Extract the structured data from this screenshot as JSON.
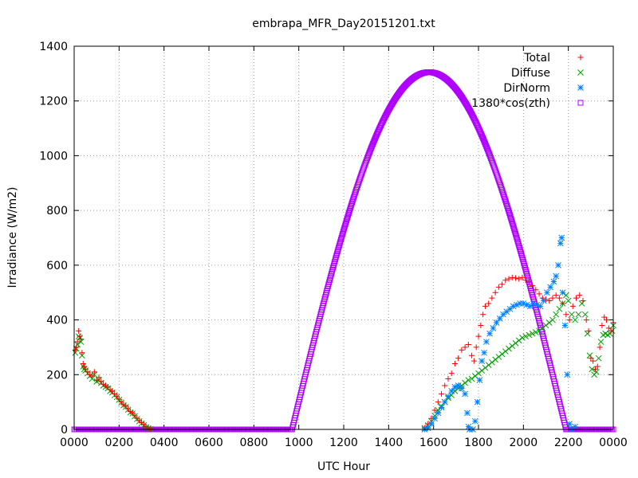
{
  "chart_data": {
    "type": "scatter",
    "title": "embrapa_MFR_Day20151201.txt",
    "xlabel": "UTC Hour",
    "ylabel": "Irradiance (W/m2)",
    "xlim": [
      0,
      24
    ],
    "ylim": [
      0,
      1400
    ],
    "x_tick_labels": [
      "0000",
      "0200",
      "0400",
      "0600",
      "0800",
      "1000",
      "1200",
      "1400",
      "1600",
      "1800",
      "2000",
      "2200",
      "0000"
    ],
    "y_tick_labels": [
      "0",
      "200",
      "400",
      "600",
      "800",
      "1000",
      "1200",
      "1400"
    ],
    "grid": true,
    "legend_position": "top-right",
    "colors": {
      "total": "#ff0000",
      "diffuse": "#00a000",
      "dirnorm": "#0080ff",
      "model": "#b000ff"
    },
    "series": [
      {
        "name": "Total",
        "marker": "plus",
        "color": "#ff0000",
        "points": [
          [
            0.05,
            290
          ],
          [
            0.1,
            300
          ],
          [
            0.15,
            320
          ],
          [
            0.2,
            360
          ],
          [
            0.25,
            340
          ],
          [
            0.3,
            330
          ],
          [
            0.35,
            280
          ],
          [
            0.4,
            240
          ],
          [
            0.45,
            230
          ],
          [
            0.5,
            220
          ],
          [
            0.6,
            210
          ],
          [
            0.7,
            200
          ],
          [
            0.8,
            195
          ],
          [
            0.9,
            210
          ],
          [
            1.0,
            180
          ],
          [
            1.1,
            190
          ],
          [
            1.2,
            175
          ],
          [
            1.3,
            165
          ],
          [
            1.4,
            160
          ],
          [
            1.5,
            155
          ],
          [
            1.6,
            145
          ],
          [
            1.7,
            140
          ],
          [
            1.8,
            130
          ],
          [
            1.9,
            120
          ],
          [
            2.0,
            110
          ],
          [
            2.1,
            100
          ],
          [
            2.2,
            90
          ],
          [
            2.3,
            85
          ],
          [
            2.4,
            75
          ],
          [
            2.5,
            65
          ],
          [
            2.6,
            60
          ],
          [
            2.7,
            50
          ],
          [
            2.8,
            40
          ],
          [
            2.9,
            32
          ],
          [
            3.0,
            25
          ],
          [
            3.1,
            18
          ],
          [
            3.2,
            10
          ],
          [
            3.3,
            5
          ],
          [
            3.4,
            2
          ],
          [
            15.6,
            5
          ],
          [
            15.75,
            20
          ],
          [
            15.9,
            40
          ],
          [
            16.05,
            70
          ],
          [
            16.2,
            100
          ],
          [
            16.35,
            130
          ],
          [
            16.5,
            160
          ],
          [
            16.65,
            185
          ],
          [
            16.8,
            205
          ],
          [
            16.95,
            240
          ],
          [
            17.1,
            260
          ],
          [
            17.25,
            290
          ],
          [
            17.4,
            300
          ],
          [
            17.55,
            310
          ],
          [
            17.7,
            270
          ],
          [
            17.8,
            250
          ],
          [
            17.9,
            300
          ],
          [
            18.0,
            340
          ],
          [
            18.1,
            380
          ],
          [
            18.2,
            420
          ],
          [
            18.3,
            450
          ],
          [
            18.45,
            460
          ],
          [
            18.6,
            480
          ],
          [
            18.75,
            500
          ],
          [
            18.9,
            520
          ],
          [
            19.05,
            530
          ],
          [
            19.2,
            545
          ],
          [
            19.35,
            550
          ],
          [
            19.5,
            555
          ],
          [
            19.65,
            553
          ],
          [
            19.8,
            550
          ],
          [
            19.95,
            555
          ],
          [
            20.1,
            545
          ],
          [
            20.25,
            540
          ],
          [
            20.4,
            525
          ],
          [
            20.55,
            510
          ],
          [
            20.7,
            495
          ],
          [
            20.85,
            480
          ],
          [
            21.0,
            475
          ],
          [
            21.15,
            470
          ],
          [
            21.3,
            480
          ],
          [
            21.45,
            490
          ],
          [
            21.6,
            480
          ],
          [
            21.75,
            460
          ],
          [
            21.9,
            420
          ],
          [
            22.05,
            400
          ],
          [
            22.2,
            450
          ],
          [
            22.35,
            480
          ],
          [
            22.5,
            490
          ],
          [
            22.65,
            470
          ],
          [
            22.8,
            400
          ],
          [
            22.9,
            360
          ],
          [
            23.0,
            260
          ],
          [
            23.1,
            250
          ],
          [
            23.2,
            220
          ],
          [
            23.3,
            230
          ],
          [
            23.4,
            300
          ],
          [
            23.5,
            380
          ],
          [
            23.6,
            410
          ],
          [
            23.7,
            400
          ],
          [
            23.8,
            370
          ],
          [
            23.9,
            360
          ],
          [
            24.0,
            390
          ]
        ]
      },
      {
        "name": "Diffuse",
        "marker": "cross",
        "color": "#00a000",
        "points": [
          [
            0.05,
            280
          ],
          [
            0.1,
            295
          ],
          [
            0.15,
            310
          ],
          [
            0.2,
            340
          ],
          [
            0.25,
            335
          ],
          [
            0.3,
            320
          ],
          [
            0.35,
            270
          ],
          [
            0.4,
            230
          ],
          [
            0.45,
            220
          ],
          [
            0.5,
            215
          ],
          [
            0.6,
            205
          ],
          [
            0.7,
            195
          ],
          [
            0.8,
            185
          ],
          [
            0.9,
            200
          ],
          [
            1.0,
            175
          ],
          [
            1.1,
            180
          ],
          [
            1.2,
            170
          ],
          [
            1.3,
            160
          ],
          [
            1.4,
            155
          ],
          [
            1.5,
            150
          ],
          [
            1.6,
            140
          ],
          [
            1.7,
            135
          ],
          [
            1.8,
            125
          ],
          [
            1.9,
            118
          ],
          [
            2.0,
            108
          ],
          [
            2.1,
            98
          ],
          [
            2.2,
            88
          ],
          [
            2.3,
            82
          ],
          [
            2.4,
            72
          ],
          [
            2.5,
            62
          ],
          [
            2.6,
            58
          ],
          [
            2.7,
            48
          ],
          [
            2.8,
            38
          ],
          [
            2.9,
            30
          ],
          [
            3.0,
            22
          ],
          [
            3.1,
            15
          ],
          [
            3.2,
            8
          ],
          [
            3.3,
            4
          ],
          [
            3.4,
            1
          ],
          [
            15.6,
            5
          ],
          [
            15.75,
            15
          ],
          [
            15.9,
            30
          ],
          [
            16.05,
            50
          ],
          [
            16.2,
            70
          ],
          [
            16.35,
            85
          ],
          [
            16.5,
            100
          ],
          [
            16.65,
            115
          ],
          [
            16.8,
            125
          ],
          [
            16.95,
            140
          ],
          [
            17.1,
            150
          ],
          [
            17.25,
            160
          ],
          [
            17.4,
            170
          ],
          [
            17.55,
            180
          ],
          [
            17.7,
            185
          ],
          [
            17.85,
            195
          ],
          [
            18.0,
            205
          ],
          [
            18.15,
            215
          ],
          [
            18.3,
            225
          ],
          [
            18.45,
            235
          ],
          [
            18.6,
            245
          ],
          [
            18.75,
            255
          ],
          [
            18.9,
            265
          ],
          [
            19.05,
            275
          ],
          [
            19.2,
            285
          ],
          [
            19.35,
            295
          ],
          [
            19.5,
            305
          ],
          [
            19.65,
            315
          ],
          [
            19.8,
            325
          ],
          [
            19.95,
            335
          ],
          [
            20.1,
            340
          ],
          [
            20.25,
            345
          ],
          [
            20.4,
            350
          ],
          [
            20.55,
            355
          ],
          [
            20.7,
            360
          ],
          [
            20.85,
            370
          ],
          [
            21.0,
            380
          ],
          [
            21.15,
            390
          ],
          [
            21.3,
            400
          ],
          [
            21.45,
            420
          ],
          [
            21.6,
            440
          ],
          [
            21.75,
            460
          ],
          [
            21.9,
            490
          ],
          [
            22.0,
            470
          ],
          [
            22.15,
            420
          ],
          [
            22.3,
            400
          ],
          [
            22.45,
            420
          ],
          [
            22.6,
            460
          ],
          [
            22.75,
            420
          ],
          [
            22.85,
            350
          ],
          [
            22.95,
            270
          ],
          [
            23.05,
            220
          ],
          [
            23.15,
            200
          ],
          [
            23.25,
            210
          ],
          [
            23.35,
            260
          ],
          [
            23.45,
            320
          ],
          [
            23.55,
            345
          ],
          [
            23.65,
            350
          ],
          [
            23.75,
            345
          ],
          [
            23.85,
            350
          ],
          [
            23.95,
            360
          ],
          [
            24.0,
            380
          ]
        ]
      },
      {
        "name": "DirNorm",
        "marker": "star",
        "color": "#0080ff",
        "points": [
          [
            15.6,
            0
          ],
          [
            15.75,
            5
          ],
          [
            15.9,
            20
          ],
          [
            16.05,
            40
          ],
          [
            16.2,
            60
          ],
          [
            16.35,
            80
          ],
          [
            16.5,
            100
          ],
          [
            16.65,
            120
          ],
          [
            16.8,
            140
          ],
          [
            16.95,
            155
          ],
          [
            17.1,
            160
          ],
          [
            17.25,
            150
          ],
          [
            17.4,
            130
          ],
          [
            17.5,
            60
          ],
          [
            17.55,
            10
          ],
          [
            17.6,
            0
          ],
          [
            17.75,
            0
          ],
          [
            17.85,
            30
          ],
          [
            17.95,
            100
          ],
          [
            18.05,
            180
          ],
          [
            18.15,
            250
          ],
          [
            18.25,
            280
          ],
          [
            18.35,
            320
          ],
          [
            18.5,
            350
          ],
          [
            18.65,
            370
          ],
          [
            18.8,
            390
          ],
          [
            18.95,
            405
          ],
          [
            19.1,
            420
          ],
          [
            19.25,
            430
          ],
          [
            19.4,
            440
          ],
          [
            19.55,
            450
          ],
          [
            19.7,
            455
          ],
          [
            19.85,
            460
          ],
          [
            20.0,
            460
          ],
          [
            20.15,
            455
          ],
          [
            20.3,
            450
          ],
          [
            20.45,
            460
          ],
          [
            20.6,
            455
          ],
          [
            20.75,
            450
          ],
          [
            20.9,
            470
          ],
          [
            21.05,
            500
          ],
          [
            21.2,
            520
          ],
          [
            21.35,
            540
          ],
          [
            21.45,
            560
          ],
          [
            21.55,
            600
          ],
          [
            21.65,
            680
          ],
          [
            21.7,
            700
          ],
          [
            21.75,
            500
          ],
          [
            21.85,
            380
          ],
          [
            21.95,
            200
          ],
          [
            22.05,
            20
          ],
          [
            22.15,
            0
          ],
          [
            22.3,
            10
          ]
        ]
      },
      {
        "name": "1380*cos(zth)",
        "marker": "box",
        "color": "#b000ff",
        "curve": {
          "sunrise": 9.7,
          "sunset": 21.9,
          "peak_x": 15.8,
          "peak_y": 1305
        },
        "flat_zero_ranges": [
          [
            0,
            9.7
          ],
          [
            21.9,
            24
          ]
        ]
      }
    ]
  }
}
